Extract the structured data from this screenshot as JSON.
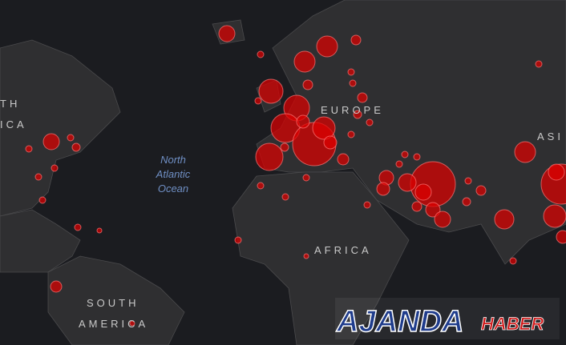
{
  "map": {
    "labels": {
      "north_america_top": "TH",
      "north_america_bottom": "ICA",
      "europe": "EUROPE",
      "ocean": [
        "North",
        "Atlantic",
        "Ocean"
      ],
      "africa": "AFRICA",
      "south_america": [
        "SOUTH",
        "AMERICA"
      ],
      "asia": "ASI"
    }
  },
  "logo": {
    "main": "AJANDA",
    "sub": "HABER"
  }
}
